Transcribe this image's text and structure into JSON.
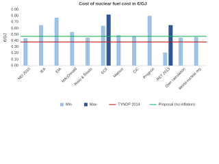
{
  "chart_data": {
    "type": "bar",
    "title": "Cost of nuclear fuel cost in €/GJ",
    "y_label": "€/GJ",
    "categories": [
      "NEI 2010",
      "IEA",
      "EIA",
      "MAcDonald",
      "Risto & Rissto",
      "ECF",
      "Matsuo",
      "CiC",
      "Prognos",
      "RET 2013",
      "Own calculation",
      "World-nuclear.org"
    ],
    "series": [
      {
        "name": "Min",
        "color": "#9dc3e6",
        "values": [
          0.44,
          0.65,
          0.77,
          0.54,
          0.45,
          0.64,
          0.49,
          0.47,
          0.8,
          0.21,
          0.45,
          0.46
        ]
      },
      {
        "name": "Max",
        "color": "#2f5597",
        "values": [
          null,
          null,
          null,
          null,
          null,
          0.82,
          null,
          null,
          null,
          0.65,
          null,
          null
        ]
      }
    ],
    "lines": [
      {
        "name": "TYNDP 2014",
        "color": "#c00000",
        "value": 0.38
      },
      {
        "name": "Proposal (no inflation)",
        "color": "#00b050",
        "value": 0.47
      }
    ],
    "ylim": [
      0,
      0.9
    ],
    "yticks": [
      {
        "value": 0,
        "label": "0.00"
      },
      {
        "value": 0.1,
        "label": "0.10"
      },
      {
        "value": 0.2,
        "label": "0.20"
      },
      {
        "value": 0.3,
        "label": "0.30"
      },
      {
        "value": 0.4,
        "label": "0.40"
      },
      {
        "value": 0.5,
        "label": "0.50"
      },
      {
        "value": 0.6,
        "label": "0.60"
      },
      {
        "value": 0.7,
        "label": "0.70"
      },
      {
        "value": 0.8,
        "label": "0.80"
      },
      {
        "value": 0.9,
        "label": "0.90"
      }
    ],
    "grid": false
  }
}
